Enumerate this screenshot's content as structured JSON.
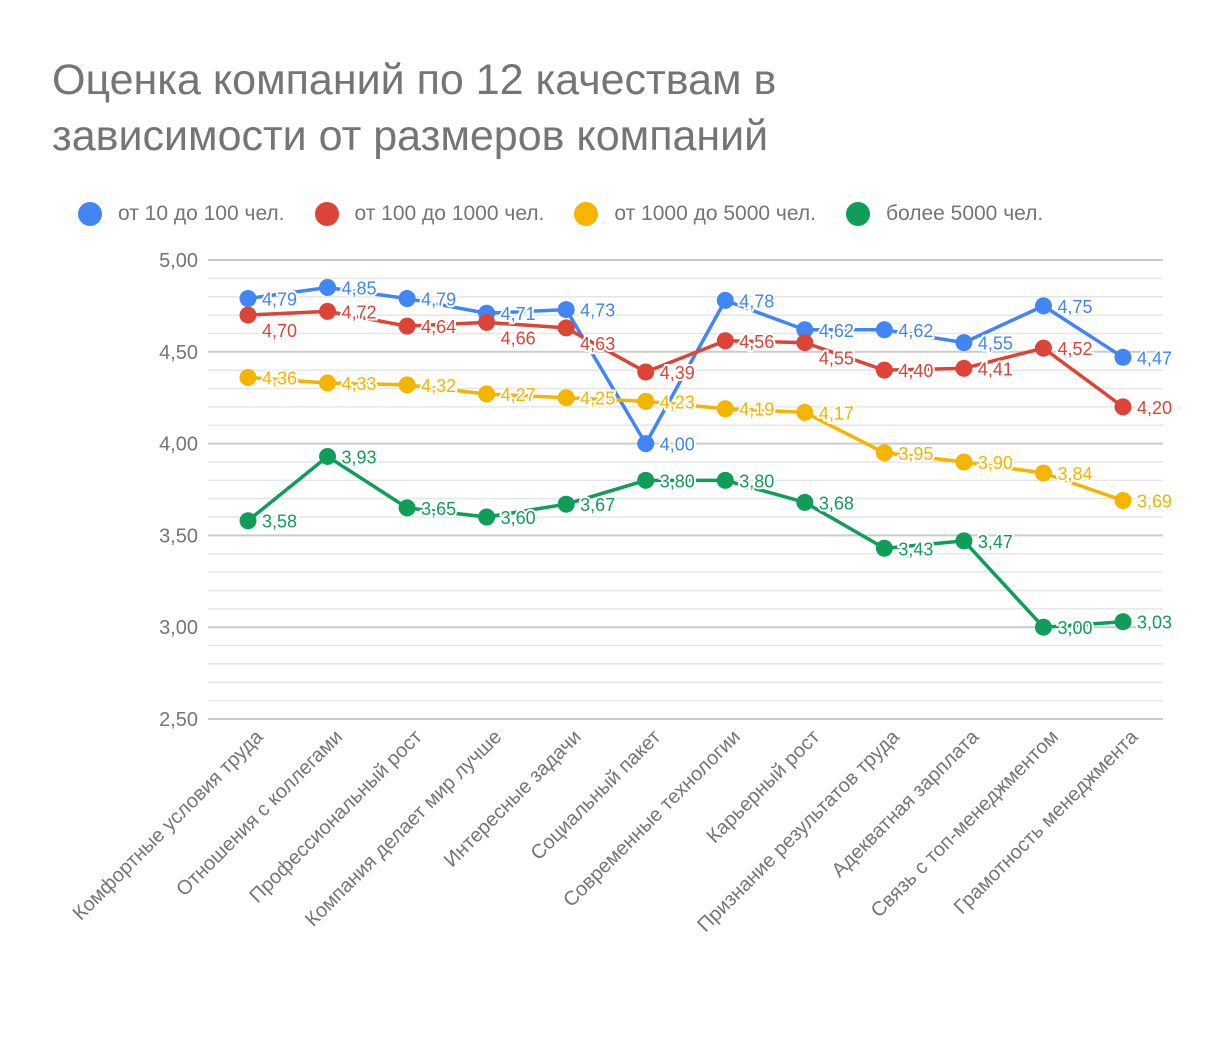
{
  "chart_data": {
    "type": "line",
    "title": "Оценка компаний по 12 качествам в зависимости от размеров компаний",
    "xlabel": "",
    "ylabel": "",
    "ylim": [
      2.5,
      5.0
    ],
    "yticks": [
      "5,00",
      "4,50",
      "4,00",
      "3,50",
      "3,00",
      "2,50"
    ],
    "ytick_values": [
      5.0,
      4.5,
      4.0,
      3.5,
      3.0,
      2.5
    ],
    "minor_gridlines_per_major": 5,
    "grid": true,
    "legend_position": "top-left",
    "decimal_separator": ",",
    "categories": [
      "Комфортные условия труда",
      "Отношения с коллегами",
      "Профессиональный рост",
      "Компания делает мир лучше",
      "Интересные задачи",
      "Социальный пакет",
      "Современные технологии",
      "Карьерный рост",
      "Признание результатов труда",
      "Адекватная зарплата",
      "Связь с топ-менеджментом",
      "Грамотность менеджмента"
    ],
    "series": [
      {
        "name": "от 10 до 100 чел.",
        "color": "#4285F4",
        "values": [
          4.79,
          4.85,
          4.79,
          4.71,
          4.73,
          4.0,
          4.78,
          4.62,
          4.62,
          4.55,
          4.75,
          4.47
        ]
      },
      {
        "name": "от 100 до 1000 чел.",
        "color": "#DB4437",
        "values": [
          4.7,
          4.72,
          4.64,
          4.66,
          4.63,
          4.39,
          4.56,
          4.55,
          4.4,
          4.41,
          4.52,
          4.2
        ]
      },
      {
        "name": "от 1000 до 5000 чел.",
        "color": "#F4B400",
        "values": [
          4.36,
          4.33,
          4.32,
          4.27,
          4.25,
          4.23,
          4.19,
          4.17,
          3.95,
          3.9,
          3.84,
          3.69
        ]
      },
      {
        "name": "более 5000 чел.",
        "color": "#0F9D58",
        "values": [
          3.58,
          3.93,
          3.65,
          3.6,
          3.67,
          3.8,
          3.8,
          3.68,
          3.43,
          3.47,
          3.0,
          3.03
        ]
      }
    ]
  },
  "colors": {
    "text": "#757575",
    "grid_major": "#cccccc",
    "grid_minor": "#e6e6e6"
  }
}
